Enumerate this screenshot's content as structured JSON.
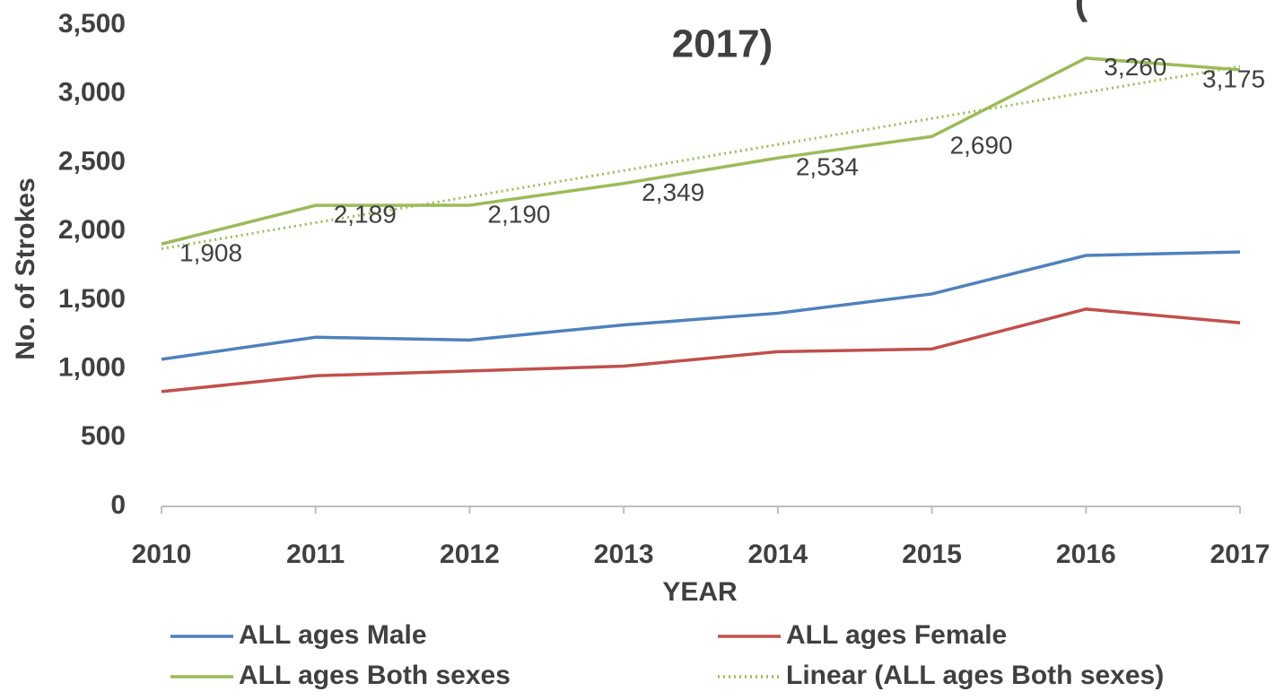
{
  "chart_data": {
    "type": "line",
    "title": [
      "(",
      "2017)"
    ],
    "x_label": "YEAR",
    "y_label": "No. of Strokes",
    "categories": [
      "2010",
      "2011",
      "2012",
      "2013",
      "2014",
      "2015",
      "2016",
      "2017"
    ],
    "ylim": [
      0,
      3500
    ],
    "yticks": [
      0,
      500,
      {
        "value": 1000,
        "label": "1,000"
      },
      {
        "value": 1500,
        "label": "1,500"
      },
      {
        "value": 2000,
        "label": "2,000"
      },
      {
        "value": 2500,
        "label": "2,500"
      },
      {
        "value": 3000,
        "label": "3,000"
      },
      {
        "value": 3500,
        "label": "3,500"
      }
    ],
    "grid": false,
    "series": [
      {
        "name": "ALL ages Male",
        "color": "#4f81bd",
        "values": [
          1070,
          1230,
          1210,
          1320,
          1405,
          1545,
          1825,
          1850
        ]
      },
      {
        "name": "ALL ages Female",
        "color": "#c0504d",
        "values": [
          835,
          950,
          985,
          1020,
          1125,
          1145,
          1435,
          1335
        ]
      },
      {
        "name": "ALL ages Both sexes",
        "color": "#9bbb59",
        "values": [
          1908,
          2189,
          2190,
          2349,
          2534,
          2690,
          3260,
          3175
        ],
        "value_labels": [
          "1,908",
          "2,189",
          "2,190",
          "2,349",
          "2,534",
          "2,690",
          "3,260",
          "3,175"
        ]
      }
    ],
    "trendline": {
      "name": "Linear (ALL ages Both sexes)",
      "color": "#9bbb59",
      "style": "dotted"
    }
  }
}
